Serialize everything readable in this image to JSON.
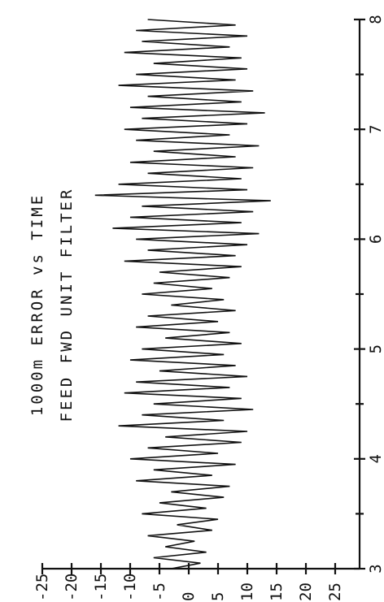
{
  "chart_data": {
    "type": "line",
    "orientation": "rotated-90-ccw",
    "title": "1000m ERROR vs TIME",
    "subtitle": "FEED FWD UNIT FILTER",
    "xlabel": "",
    "ylabel": "",
    "xlim": [
      3,
      8
    ],
    "ylim": [
      -25,
      25
    ],
    "x_ticks": [
      3,
      4,
      5,
      6,
      7,
      8
    ],
    "x_tick_labels": [
      "3",
      "4",
      "5",
      "6",
      "7",
      "8"
    ],
    "x_minor_step": 0.5,
    "y_ticks": [
      25,
      20,
      15,
      10,
      5,
      0,
      -5,
      -10,
      -15,
      -20,
      -25
    ],
    "y_tick_labels": [
      "25",
      "20",
      "15",
      "10",
      "5",
      "0",
      "-5",
      "-10",
      "-15",
      "-20",
      "-25"
    ],
    "grid": false,
    "series": [
      {
        "x": [
          3.0,
          3.05,
          3.1,
          3.15,
          3.2,
          3.25,
          3.3,
          3.35,
          3.4,
          3.45,
          3.5,
          3.55,
          3.6,
          3.65,
          3.7,
          3.75,
          3.8,
          3.85,
          3.9,
          3.95,
          4.0,
          4.05,
          4.1,
          4.15,
          4.2,
          4.25,
          4.3,
          4.35,
          4.4,
          4.45,
          4.5,
          4.55,
          4.6,
          4.65,
          4.7,
          4.75,
          4.8,
          4.85,
          4.9,
          4.95,
          5.0,
          5.05,
          5.1,
          5.15,
          5.2,
          5.25,
          5.3,
          5.35,
          5.4,
          5.45,
          5.5,
          5.55,
          5.6,
          5.65,
          5.7,
          5.75,
          5.8,
          5.85,
          5.9,
          5.95,
          6.0,
          6.05,
          6.1,
          6.15,
          6.2,
          6.25,
          6.3,
          6.35,
          6.4,
          6.45,
          6.5,
          6.55,
          6.6,
          6.65,
          6.7,
          6.75,
          6.8,
          6.85,
          6.9,
          6.95,
          7.0,
          7.05,
          7.1,
          7.15,
          7.2,
          7.25,
          7.3,
          7.35,
          7.4,
          7.45,
          7.5,
          7.55,
          7.6,
          7.65,
          7.7,
          7.75,
          7.8,
          7.85,
          7.9,
          7.95,
          8.0
        ],
        "values": [
          -3,
          2,
          -6,
          3,
          -4,
          1,
          -7,
          4,
          -2,
          5,
          -8,
          3,
          -5,
          6,
          -3,
          7,
          -9,
          4,
          -6,
          8,
          -10,
          5,
          -7,
          9,
          -4,
          10,
          -12,
          6,
          -8,
          11,
          -6,
          9,
          -11,
          7,
          -9,
          10,
          -5,
          8,
          -10,
          6,
          -8,
          9,
          -4,
          7,
          -9,
          5,
          -7,
          8,
          -3,
          6,
          -8,
          4,
          -6,
          7,
          -5,
          9,
          -11,
          8,
          -7,
          10,
          -9,
          12,
          -13,
          9,
          -10,
          11,
          -8,
          14,
          -16,
          10,
          -12,
          9,
          -7,
          11,
          -10,
          8,
          -6,
          12,
          -9,
          7,
          -11,
          10,
          -8,
          13,
          -10,
          9,
          -7,
          11,
          -12,
          8,
          -9,
          10,
          -6,
          9,
          -11,
          7,
          -8,
          10,
          -9,
          8,
          -7
        ]
      }
    ]
  }
}
